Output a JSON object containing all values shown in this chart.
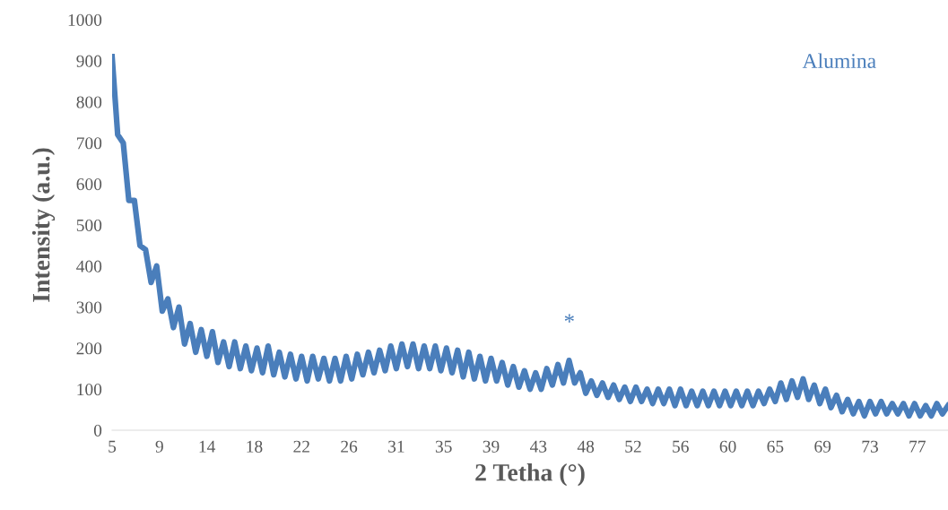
{
  "chart_data": {
    "type": "line",
    "xlabel": "2 Tetha (°)",
    "ylabel": "Intensity (a.u.)",
    "xlim": [
      5,
      80
    ],
    "ylim": [
      0,
      1000
    ],
    "xticks": [
      5,
      {
        "value": 9.25,
        "label": "9"
      },
      {
        "value": 13.5,
        "label": "14"
      },
      {
        "value": 17.75,
        "label": "18"
      },
      22,
      {
        "value": 26.25,
        "label": "26"
      },
      {
        "value": 30.5,
        "label": "31"
      },
      {
        "value": 34.75,
        "label": "35"
      },
      39,
      {
        "value": 43.25,
        "label": "43"
      },
      {
        "value": 47.5,
        "label": "48"
      },
      {
        "value": 51.75,
        "label": "52"
      },
      56,
      {
        "value": 60.25,
        "label": "60"
      },
      {
        "value": 64.5,
        "label": "65"
      },
      {
        "value": 68.75,
        "label": "69"
      },
      73,
      {
        "value": 77.25,
        "label": "77"
      }
    ],
    "yticks": [
      0,
      100,
      200,
      300,
      400,
      500,
      600,
      700,
      800,
      900,
      1000
    ],
    "grid": false,
    "legend": false,
    "annotations": [
      "*"
    ],
    "series": [
      {
        "name": "Alumina",
        "color": "#4a7ebb",
        "x": [
          5.0,
          5.5,
          6.0,
          6.5,
          7.0,
          7.5,
          8.0,
          8.5,
          9.0,
          9.5,
          10.0,
          10.5,
          11.0,
          11.5,
          12.0,
          12.5,
          13.0,
          13.5,
          14.0,
          14.5,
          15.0,
          15.5,
          16.0,
          16.5,
          17.0,
          17.5,
          18.0,
          18.5,
          19.0,
          19.5,
          20.0,
          20.5,
          21.0,
          21.5,
          22.0,
          22.5,
          23.0,
          23.5,
          24.0,
          24.5,
          25.0,
          25.5,
          26.0,
          26.5,
          27.0,
          27.5,
          28.0,
          28.5,
          29.0,
          29.5,
          30.0,
          30.5,
          31.0,
          31.5,
          32.0,
          32.5,
          33.0,
          33.5,
          34.0,
          34.5,
          35.0,
          35.5,
          36.0,
          36.5,
          37.0,
          37.5,
          38.0,
          38.5,
          39.0,
          39.5,
          40.0,
          40.5,
          41.0,
          41.5,
          42.0,
          42.5,
          43.0,
          43.5,
          44.0,
          44.5,
          45.0,
          45.5,
          46.0,
          46.5,
          47.0,
          47.5,
          48.0,
          48.5,
          49.0,
          49.5,
          50.0,
          50.5,
          51.0,
          51.5,
          52.0,
          52.5,
          53.0,
          53.5,
          54.0,
          54.5,
          55.0,
          55.5,
          56.0,
          56.5,
          57.0,
          57.5,
          58.0,
          58.5,
          59.0,
          59.5,
          60.0,
          60.5,
          61.0,
          61.5,
          62.0,
          62.5,
          63.0,
          63.5,
          64.0,
          64.5,
          65.0,
          65.5,
          66.0,
          66.5,
          67.0,
          67.5,
          68.0,
          68.5,
          69.0,
          69.5,
          70.0,
          70.5,
          71.0,
          71.5,
          72.0,
          72.5,
          73.0,
          73.5,
          74.0,
          74.5,
          75.0,
          75.5,
          76.0,
          76.5,
          77.0,
          77.5,
          78.0,
          78.5,
          79.0,
          79.5,
          80.0
        ],
        "values": [
          910,
          720,
          700,
          560,
          560,
          450,
          440,
          360,
          400,
          290,
          320,
          250,
          300,
          210,
          260,
          190,
          245,
          180,
          240,
          165,
          215,
          155,
          215,
          150,
          205,
          145,
          200,
          140,
          205,
          135,
          190,
          130,
          185,
          125,
          180,
          120,
          180,
          125,
          175,
          120,
          175,
          120,
          180,
          125,
          185,
          135,
          190,
          140,
          195,
          145,
          205,
          150,
          210,
          155,
          210,
          150,
          205,
          150,
          205,
          145,
          200,
          140,
          195,
          130,
          190,
          125,
          180,
          120,
          175,
          120,
          165,
          110,
          155,
          105,
          145,
          100,
          140,
          100,
          150,
          110,
          160,
          115,
          170,
          115,
          140,
          90,
          120,
          85,
          115,
          80,
          110,
          75,
          105,
          70,
          105,
          70,
          100,
          65,
          100,
          65,
          100,
          60,
          100,
          60,
          95,
          60,
          95,
          60,
          95,
          60,
          95,
          60,
          95,
          60,
          95,
          60,
          95,
          65,
          100,
          70,
          115,
          75,
          120,
          80,
          125,
          75,
          110,
          65,
          100,
          55,
          85,
          45,
          75,
          40,
          70,
          35,
          70,
          40,
          70,
          40,
          65,
          40,
          65,
          35,
          65,
          35,
          60,
          35,
          65,
          40,
          60
        ]
      }
    ]
  }
}
